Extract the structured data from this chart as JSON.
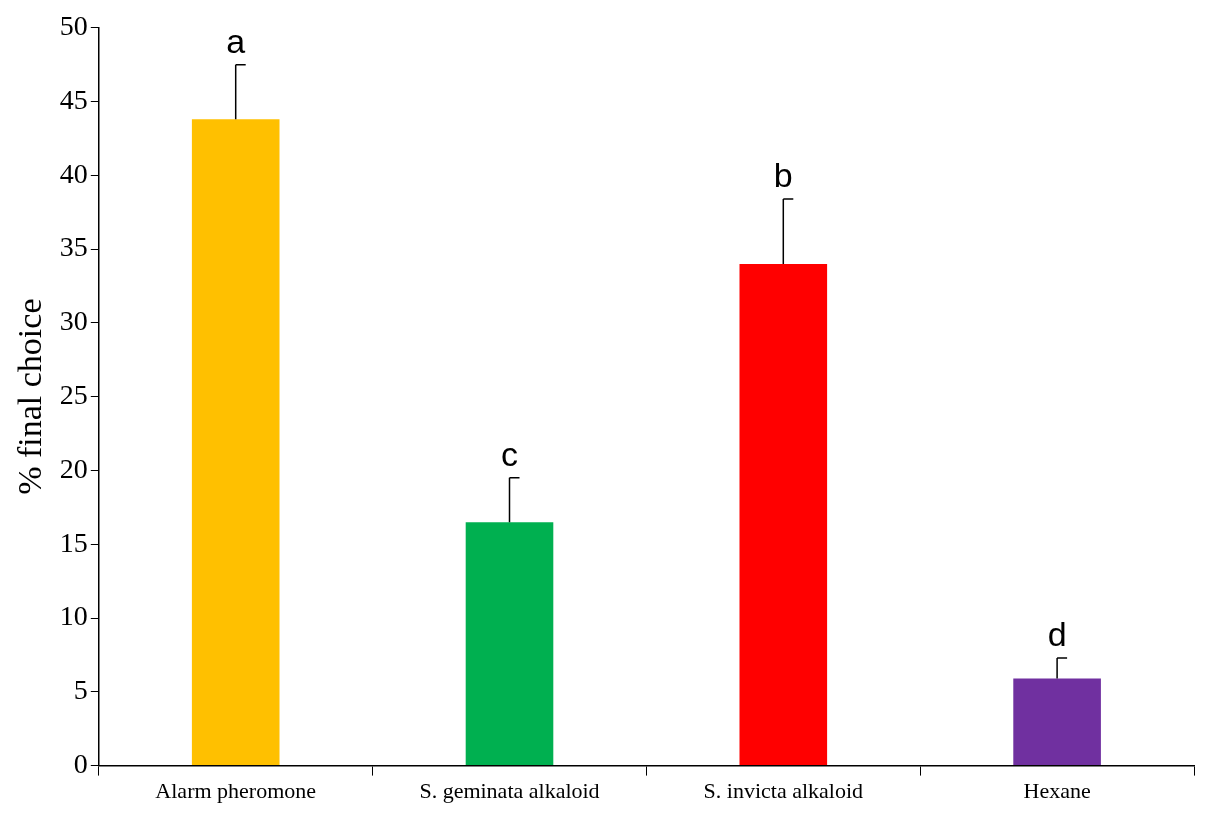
{
  "chart_data": {
    "type": "bar",
    "ylabel": "% final choice",
    "categories": [
      "Alarm pheromone",
      "S. geminata alkaloid",
      "S. invicta alkaloid",
      "Hexane"
    ],
    "values": [
      43.8,
      16.5,
      34.0,
      5.9
    ],
    "colors": [
      "#ffc000",
      "#00b050",
      "#ff0000",
      "#7030a0"
    ],
    "errors": [
      3.7,
      3.0,
      4.4,
      1.4
    ],
    "ylim": [
      0,
      50
    ],
    "yticks": [
      0,
      5,
      10,
      15,
      20,
      25,
      30,
      35,
      40,
      45,
      50
    ],
    "annotations": [
      {
        "text": "a",
        "x": "Alarm pheromone",
        "y": 47.5
      },
      {
        "text": "c",
        "x": "S. geminata alkaloid",
        "y": 19.5
      },
      {
        "text": "b",
        "x": "S. invicta alkaloid",
        "y": 38.4
      },
      {
        "text": "d",
        "x": "Hexane",
        "y": 7.3
      }
    ]
  }
}
